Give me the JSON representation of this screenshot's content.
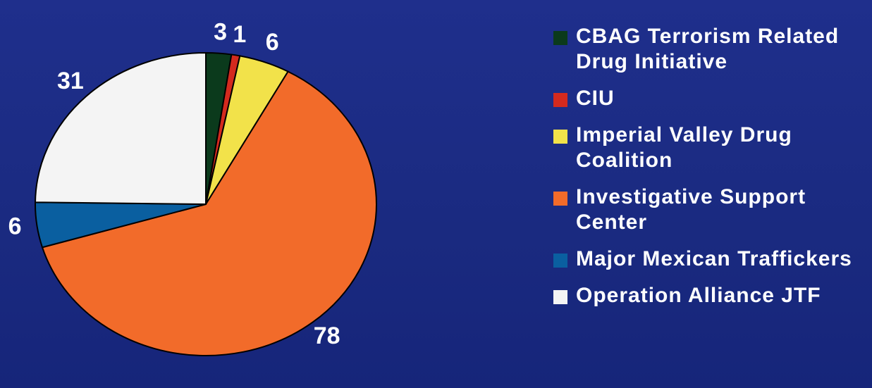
{
  "chart_data": {
    "type": "pie",
    "categories": [
      "CBAG Terrorism Related Drug Initiative",
      "CIU",
      "Imperial Valley Drug Coalition",
      "Investigative Support Center",
      "Major Mexican Traffickers",
      "Operation Alliance JTF"
    ],
    "values": [
      3,
      1,
      6,
      78,
      6,
      31
    ],
    "colors": [
      "#0b3a1c",
      "#d42a1e",
      "#f2e24a",
      "#f26b2a",
      "#0a5fa0",
      "#f4f4f4"
    ],
    "legend": "right"
  }
}
